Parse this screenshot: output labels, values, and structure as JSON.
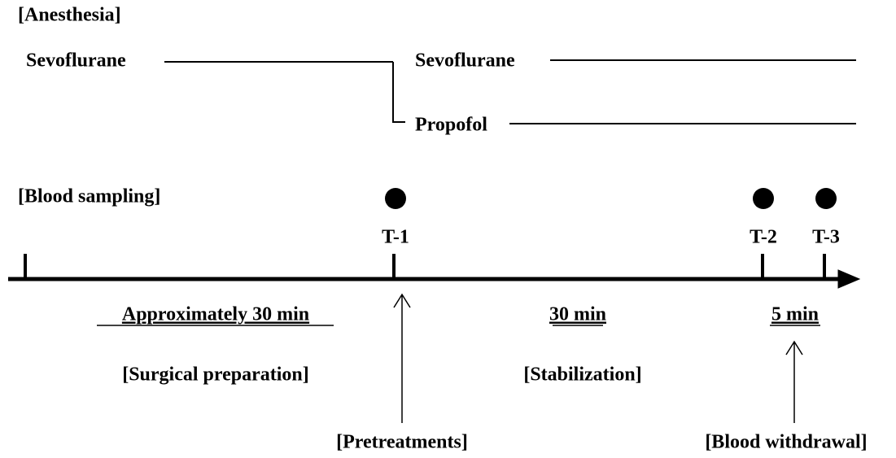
{
  "anesthesia": {
    "heading": "[Anesthesia]",
    "initial": "Sevoflurane",
    "branch_upper": "Sevoflurane",
    "branch_lower": "Propofol"
  },
  "sampling": {
    "heading": "[Blood sampling]",
    "points": [
      "T-1",
      "T-2",
      "T-3"
    ]
  },
  "intervals": [
    {
      "duration": "Approximately 30 min",
      "phase": "[Surgical preparation]"
    },
    {
      "duration": "30 min",
      "phase": "[Stabilization]"
    },
    {
      "duration": "5 min",
      "phase": null
    }
  ],
  "events": [
    "[Pretreatments]",
    "[Blood withdrawal]"
  ]
}
